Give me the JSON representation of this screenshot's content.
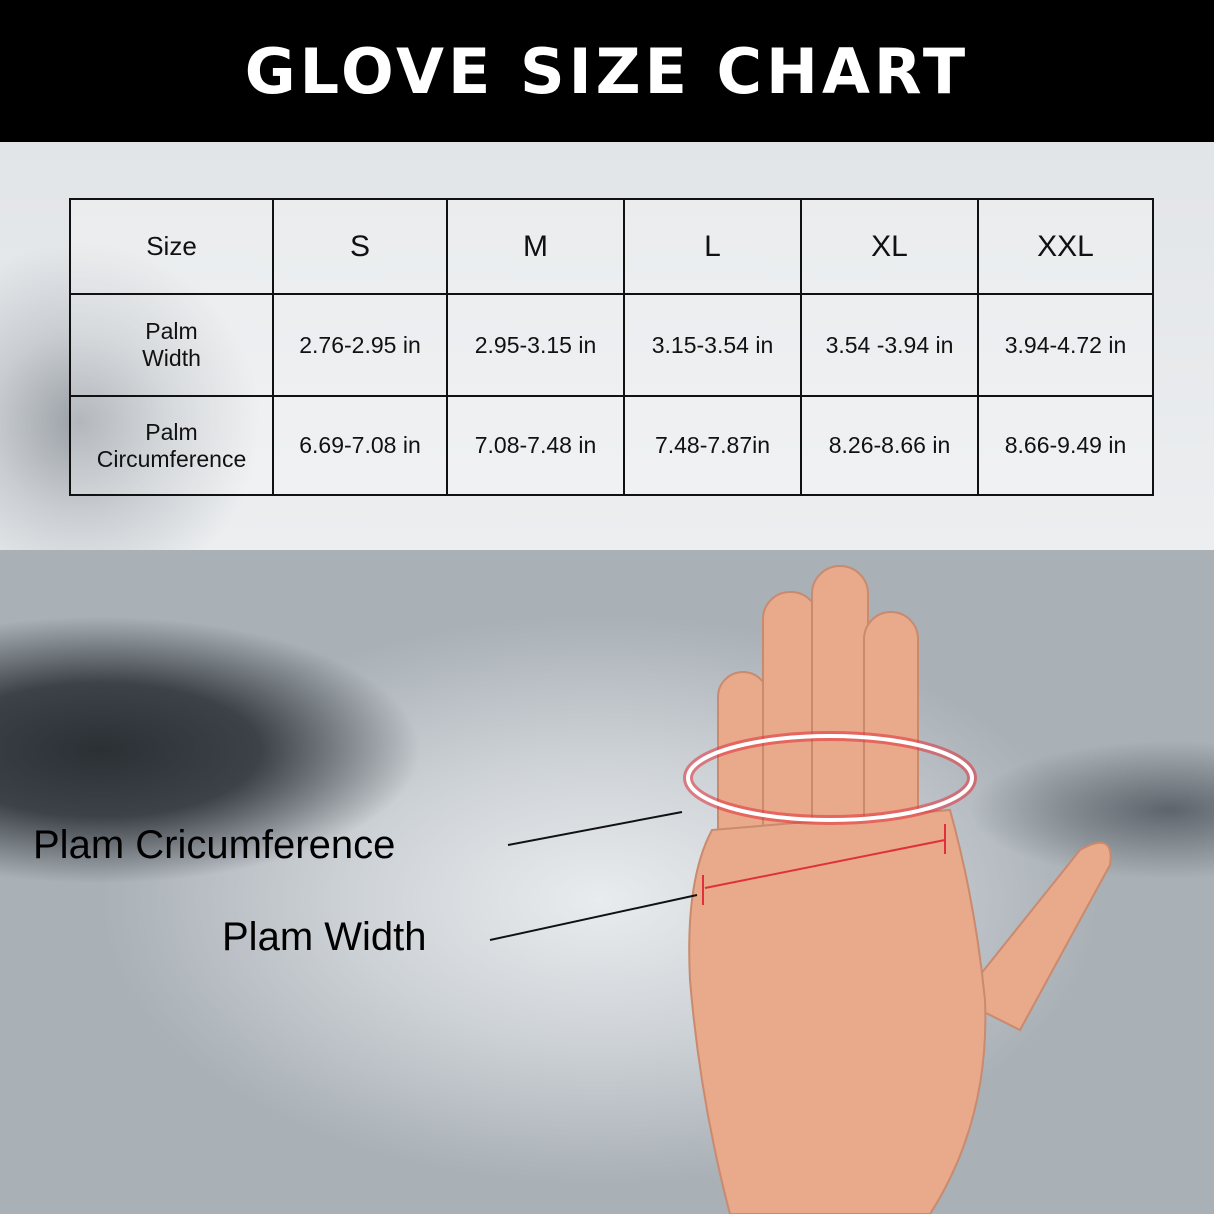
{
  "title": "GLOVE SIZE CHART",
  "table": {
    "header": [
      "Size",
      "S",
      "M",
      "L",
      "XL",
      "XXL"
    ],
    "rows": [
      {
        "label_line1": "Palm",
        "label_line2": "Width",
        "values": [
          "2.76-2.95 in",
          "2.95-3.15 in",
          "3.15-3.54 in",
          "3.54 -3.94 in",
          "3.94-4.72 in"
        ]
      },
      {
        "label_line1": "Palm",
        "label_line2": "Circumference",
        "values": [
          "6.69-7.08 in",
          "7.08-7.48 in",
          "7.48-7.87in",
          "8.26-8.66 in",
          "8.66-9.49  in"
        ]
      }
    ]
  },
  "diagram": {
    "circumference_label": "Plam Cricumference",
    "width_label": "Plam Width",
    "measure_color": "#e0303a"
  }
}
